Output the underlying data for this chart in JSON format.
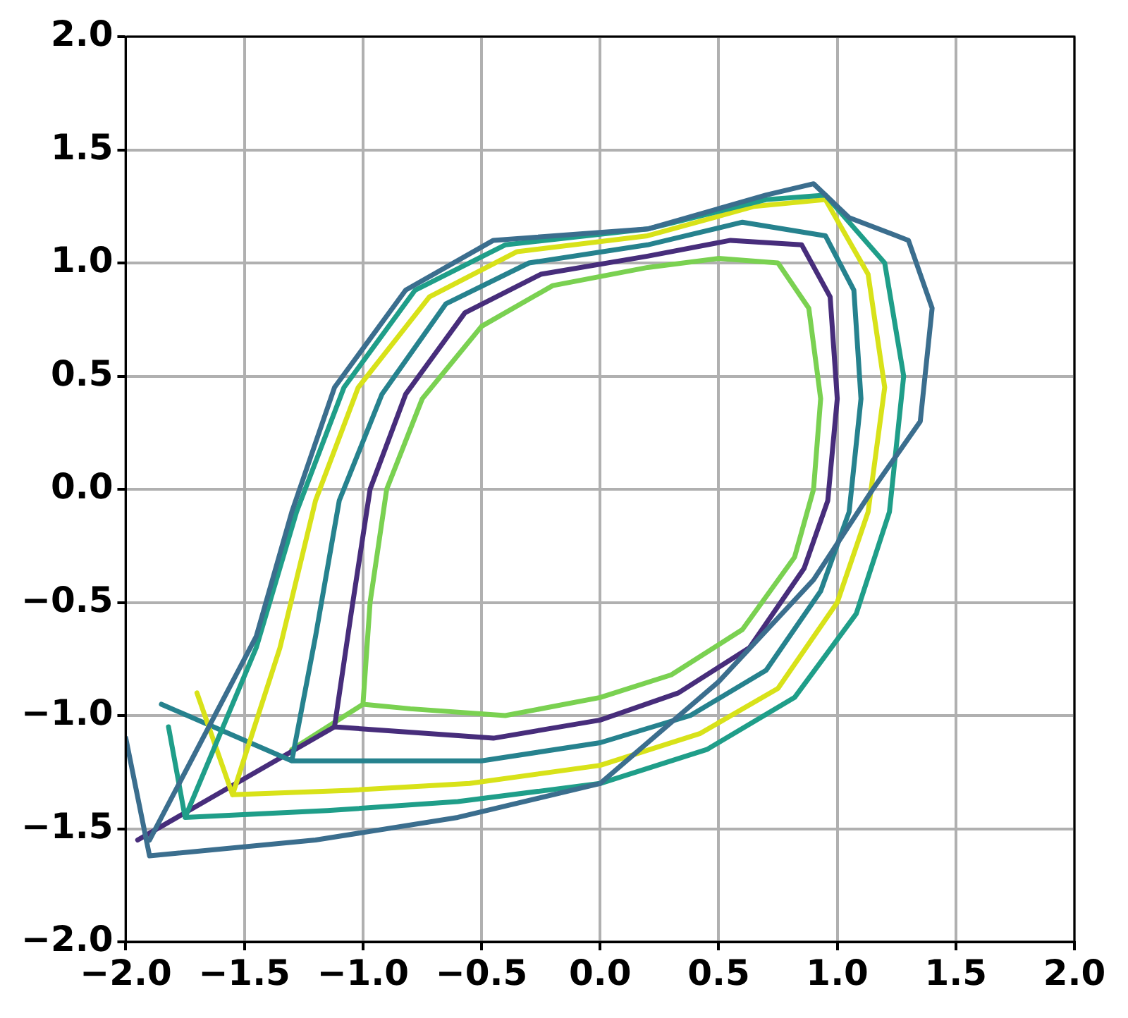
{
  "chart_data": {
    "type": "line",
    "xlim": [
      -2,
      2
    ],
    "ylim": [
      -2,
      2
    ],
    "xticks": [
      {
        "value": -2,
        "label": "−2.0"
      },
      {
        "value": -1.5,
        "label": "−1.5"
      },
      {
        "value": -1,
        "label": "−1.0"
      },
      {
        "value": -0.5,
        "label": "−0.5"
      },
      {
        "value": 0,
        "label": "0.0"
      },
      {
        "value": 0.5,
        "label": "0.5"
      },
      {
        "value": 1,
        "label": "1.0"
      },
      {
        "value": 1.5,
        "label": "1.5"
      },
      {
        "value": 2,
        "label": "2.0"
      }
    ],
    "yticks": [
      {
        "value": -2,
        "label": "−2.0"
      },
      {
        "value": -1.5,
        "label": "−1.5"
      },
      {
        "value": -1,
        "label": "−1.0"
      },
      {
        "value": -0.5,
        "label": "−0.5"
      },
      {
        "value": 0,
        "label": "0.0"
      },
      {
        "value": 0.5,
        "label": "0.5"
      },
      {
        "value": 1,
        "label": "1.0"
      },
      {
        "value": 1.5,
        "label": "1.5"
      },
      {
        "value": 2,
        "label": "2.0"
      }
    ],
    "grid": true,
    "legend": false,
    "marker": "none",
    "line_style": "solid",
    "series": [
      {
        "color": "#3b6e8e",
        "x": [
          -1.9,
          -1.45,
          -1.3,
          -1.12,
          -0.82,
          -0.45,
          0.2,
          0.7,
          0.9,
          1.05,
          1.3,
          1.4,
          1.35,
          1.15,
          0.9,
          0.5,
          0,
          -0.6,
          -1.2,
          -1.9,
          -2.0
        ],
        "values": [
          -1.55,
          -0.65,
          -0.1,
          0.45,
          0.88,
          1.1,
          1.15,
          1.3,
          1.35,
          1.2,
          1.1,
          0.8,
          0.3,
          0.0,
          -0.4,
          -0.85,
          -1.3,
          -1.45,
          -1.55,
          -1.62,
          -1.1
        ]
      },
      {
        "color": "#1f9e89",
        "x": [
          -1.75,
          -1.45,
          -1.28,
          -1.08,
          -0.78,
          -0.4,
          0.2,
          0.7,
          0.95,
          1.2,
          1.28,
          1.22,
          1.08,
          0.82,
          0.45,
          0,
          -0.6,
          -1.15,
          -1.75,
          -1.82
        ],
        "values": [
          -1.45,
          -0.7,
          -0.1,
          0.45,
          0.88,
          1.08,
          1.15,
          1.28,
          1.3,
          1.0,
          0.5,
          -0.1,
          -0.55,
          -0.92,
          -1.15,
          -1.3,
          -1.38,
          -1.42,
          -1.45,
          -1.05
        ]
      },
      {
        "color": "#d8e219",
        "x": [
          -1.55,
          -1.35,
          -1.2,
          -1.02,
          -0.72,
          -0.35,
          0.2,
          0.65,
          0.95,
          1.13,
          1.2,
          1.13,
          1.0,
          0.75,
          0.42,
          0,
          -0.55,
          -1.05,
          -1.55,
          -1.7
        ],
        "values": [
          -1.35,
          -0.7,
          -0.05,
          0.45,
          0.85,
          1.05,
          1.12,
          1.25,
          1.28,
          0.95,
          0.45,
          -0.1,
          -0.5,
          -0.88,
          -1.08,
          -1.22,
          -1.3,
          -1.33,
          -1.35,
          -0.9
        ]
      },
      {
        "color": "#26828e",
        "x": [
          -1.3,
          -1.2,
          -1.1,
          -0.92,
          -0.65,
          -0.3,
          0.2,
          0.6,
          0.95,
          1.07,
          1.1,
          1.05,
          0.93,
          0.7,
          0.38,
          0,
          -0.5,
          -0.95,
          -1.3,
          -1.85
        ],
        "values": [
          -1.2,
          -0.65,
          -0.05,
          0.42,
          0.82,
          1.0,
          1.08,
          1.18,
          1.12,
          0.88,
          0.4,
          -0.1,
          -0.45,
          -0.8,
          -1.0,
          -1.12,
          -1.2,
          -1.2,
          -1.2,
          -0.95
        ]
      },
      {
        "color": "#472d7b",
        "x": [
          -1.12,
          -1.05,
          -0.97,
          -0.82,
          -0.57,
          -0.25,
          0.2,
          0.55,
          0.85,
          0.97,
          1.0,
          0.96,
          0.86,
          0.63,
          0.33,
          0,
          -0.45,
          -0.85,
          -1.12,
          -1.95
        ],
        "values": [
          -1.05,
          -0.55,
          0,
          0.42,
          0.78,
          0.95,
          1.03,
          1.1,
          1.08,
          0.85,
          0.4,
          -0.05,
          -0.35,
          -0.7,
          -0.9,
          -1.02,
          -1.1,
          -1.07,
          -1.05,
          -1.55
        ]
      },
      {
        "color": "#7ad151",
        "x": [
          -1.0,
          -0.97,
          -0.9,
          -0.75,
          -0.5,
          -0.2,
          0.2,
          0.5,
          0.75,
          0.88,
          0.93,
          0.9,
          0.82,
          0.6,
          0.3,
          0,
          -0.4,
          -0.8,
          -1.0,
          -1.3
        ],
        "values": [
          -0.95,
          -0.5,
          0,
          0.4,
          0.72,
          0.9,
          0.98,
          1.02,
          1.0,
          0.8,
          0.4,
          0,
          -0.3,
          -0.62,
          -0.82,
          -0.92,
          -1.0,
          -0.97,
          -0.95,
          -1.15
        ]
      }
    ]
  }
}
